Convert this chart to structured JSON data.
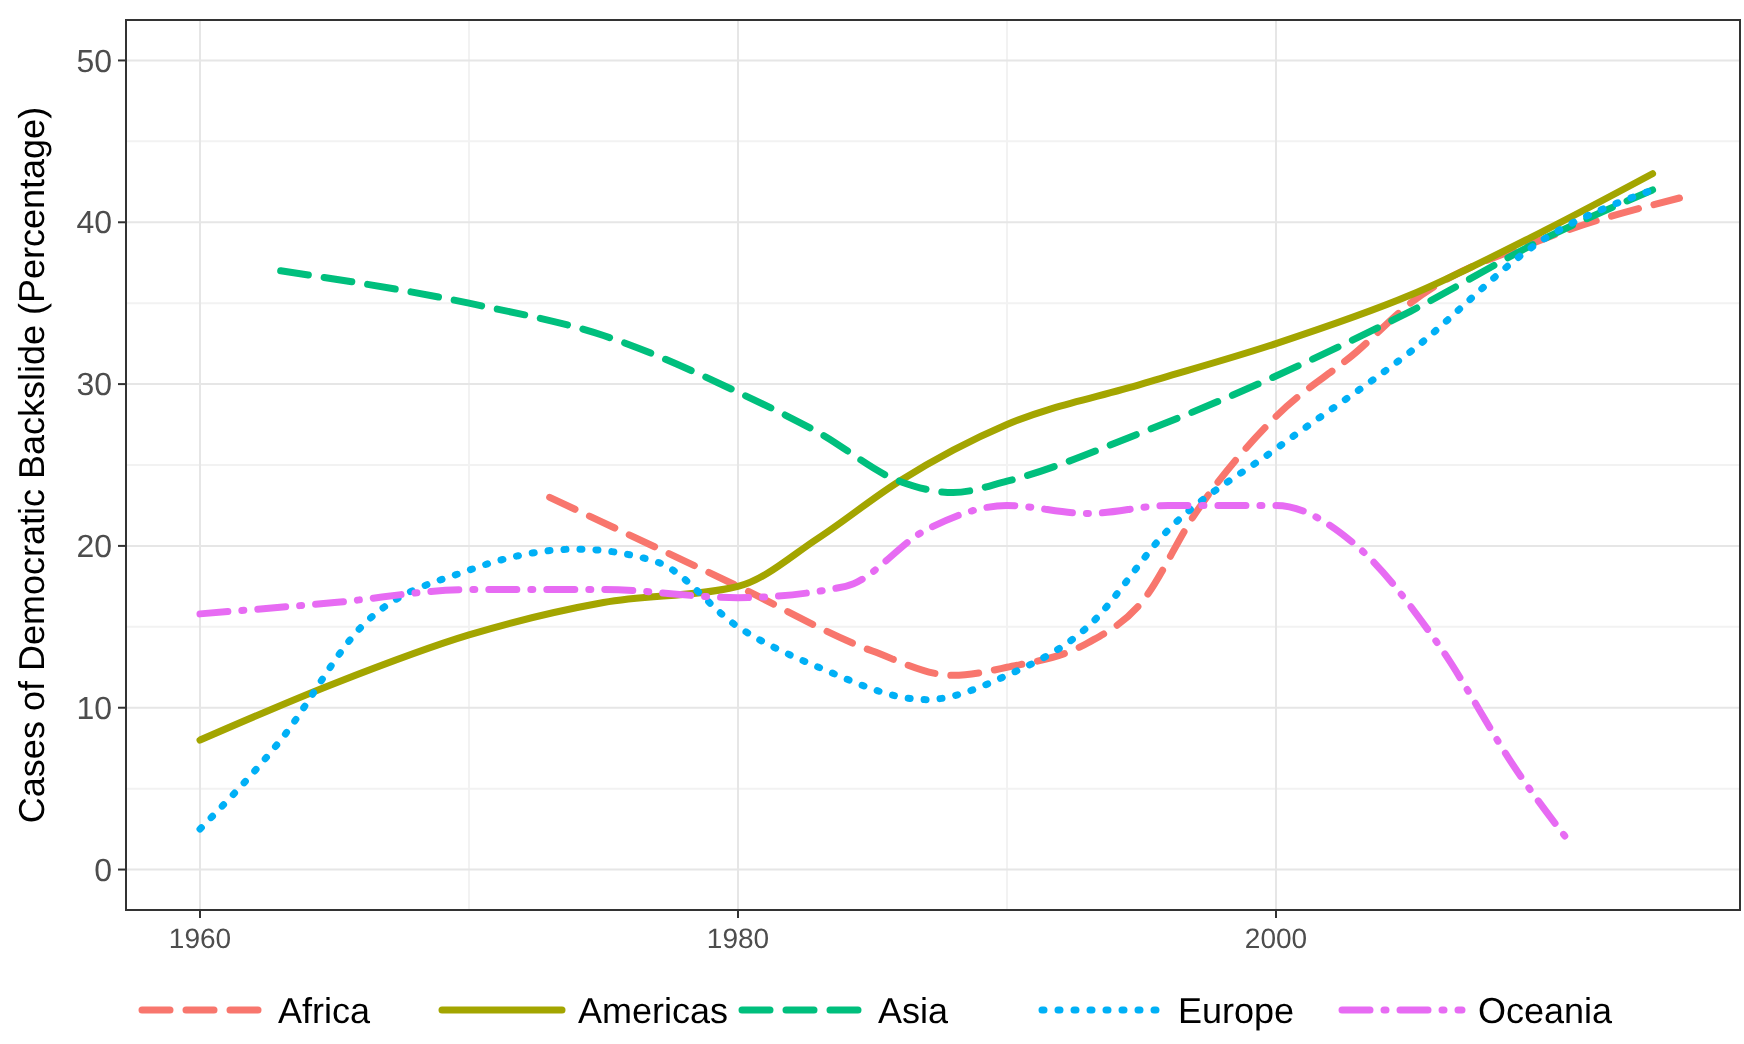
{
  "chart_data": {
    "type": "line",
    "ylabel": "Cases of Democratic Backslide (Percentage)",
    "xlim": [
      1957.25,
      2017.25
    ],
    "ylim": [
      -2.5,
      52.5
    ],
    "xticks": [
      1960,
      1980,
      2000
    ],
    "yticks": [
      0,
      10,
      20,
      30,
      40,
      50
    ],
    "grid": true,
    "legend": "bottom",
    "series": [
      {
        "name": "Africa",
        "color": "#f8766d",
        "line_style": "dashed",
        "x": [
          1973,
          1980,
          1985,
          1988,
          1990,
          1993,
          1995,
          1997,
          2000,
          2003,
          2005,
          2010,
          2015
        ],
        "values": [
          23,
          17.5,
          13.5,
          12,
          12.5,
          14,
          16.5,
          22,
          28,
          32,
          35,
          39,
          41.5
        ]
      },
      {
        "name": "Americas",
        "color": "#a3a500",
        "line_style": "solid",
        "x": [
          1960,
          1965,
          1970,
          1975,
          1980,
          1983,
          1986,
          1990,
          1995,
          2000,
          2005,
          2010,
          2014
        ],
        "values": [
          8,
          11.5,
          14.5,
          16.5,
          17.5,
          20.5,
          24,
          27.5,
          30,
          32.5,
          35.5,
          39.5,
          43
        ]
      },
      {
        "name": "Asia",
        "color": "#00bf7d",
        "line_style": "dashed",
        "x": [
          1963,
          1970,
          1975,
          1980,
          1983,
          1986,
          1988,
          1990,
          1995,
          2000,
          2005,
          2010,
          2014
        ],
        "values": [
          37,
          35,
          33,
          29.5,
          27,
          24,
          23.3,
          24,
          27,
          30.5,
          34.5,
          39,
          42
        ]
      },
      {
        "name": "Europe",
        "color": "#00b0f6",
        "line_style": "dotted",
        "x": [
          1960,
          1963,
          1966,
          1970,
          1974,
          1977,
          1980,
          1983,
          1987,
          1990,
          1993,
          1996,
          2000,
          2005,
          2010,
          2014
        ],
        "values": [
          2.5,
          8,
          15,
          18.5,
          19.8,
          19,
          15,
          12.5,
          10.5,
          12,
          15,
          21,
          26,
          32,
          39,
          42
        ]
      },
      {
        "name": "Oceania",
        "color": "#e76bf3",
        "line_style": "dashdot",
        "x": [
          1960,
          1965,
          1970,
          1975,
          1980,
          1984,
          1987,
          1990,
          1993,
          1996,
          2000,
          2003,
          2006,
          2009,
          2011
        ],
        "values": [
          15.8,
          16.5,
          17.3,
          17.3,
          16.8,
          17.5,
          21,
          22.5,
          22,
          22.5,
          22.5,
          20,
          14,
          6,
          1.5
        ]
      }
    ]
  }
}
